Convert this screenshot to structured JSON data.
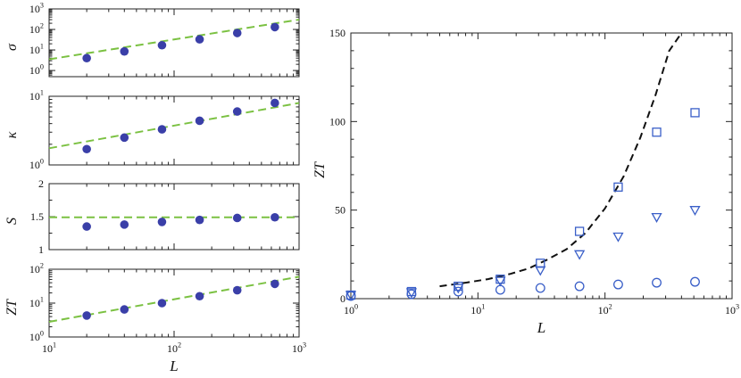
{
  "chart_data": [
    {
      "type": "scatter",
      "panel": "sigma",
      "ylabel": "σ",
      "xscale": "log",
      "yscale": "log",
      "xlim": [
        10,
        1000
      ],
      "ylim": [
        0.5,
        1000
      ],
      "x_ticks": [
        10,
        100,
        1000
      ],
      "y_ticks": [
        1,
        10,
        100,
        1000
      ],
      "y_tick_labels": [
        {
          "base": "10",
          "exp": "0"
        },
        {
          "base": "10",
          "exp": "1"
        },
        {
          "base": "10",
          "exp": "2"
        },
        {
          "base": "10",
          "exp": "3"
        }
      ],
      "series": [
        {
          "marker": "filled-circle",
          "color": "#3a3fa8",
          "x": [
            20,
            40,
            80,
            160,
            320,
            640
          ],
          "y": [
            4,
            8.5,
            17,
            33,
            67,
            130
          ]
        }
      ],
      "fit_line": {
        "style": "dashed",
        "color": "#7bc142",
        "x": [
          10,
          1000
        ],
        "y": [
          3.5,
          300
        ]
      }
    },
    {
      "type": "scatter",
      "panel": "kappa",
      "ylabel": "κ",
      "xscale": "log",
      "yscale": "log",
      "xlim": [
        10,
        1000
      ],
      "ylim": [
        1,
        10
      ],
      "x_ticks": [
        10,
        100,
        1000
      ],
      "y_ticks": [
        1,
        10
      ],
      "y_tick_labels": [
        {
          "base": "10",
          "exp": "0"
        },
        {
          "base": "10",
          "exp": "1"
        }
      ],
      "series": [
        {
          "marker": "filled-circle",
          "color": "#3a3fa8",
          "x": [
            20,
            40,
            80,
            160,
            320,
            640
          ],
          "y": [
            1.7,
            2.5,
            3.3,
            4.4,
            6.0,
            8.0
          ]
        }
      ],
      "fit_line": {
        "style": "dashed",
        "color": "#7bc142",
        "x": [
          10,
          1000
        ],
        "y": [
          1.75,
          8.0
        ]
      }
    },
    {
      "type": "scatter",
      "panel": "S",
      "ylabel": "S",
      "xscale": "log",
      "yscale": "linear",
      "xlim": [
        10,
        1000
      ],
      "ylim": [
        1,
        2
      ],
      "x_ticks": [
        10,
        100,
        1000
      ],
      "y_ticks": [
        1,
        1.5,
        2
      ],
      "y_tick_labels": [
        "1",
        "1.5",
        "2"
      ],
      "series": [
        {
          "marker": "filled-circle",
          "color": "#3a3fa8",
          "x": [
            20,
            40,
            80,
            160,
            320,
            640
          ],
          "y": [
            1.35,
            1.38,
            1.42,
            1.45,
            1.48,
            1.49
          ]
        }
      ],
      "fit_line": {
        "style": "dashed",
        "color": "#7bc142",
        "x": [
          10,
          1000
        ],
        "y": [
          1.49,
          1.49
        ]
      }
    },
    {
      "type": "scatter",
      "panel": "ZT",
      "ylabel": "ZT",
      "xlabel": "L",
      "xscale": "log",
      "yscale": "log",
      "xlim": [
        10,
        1000
      ],
      "ylim": [
        1,
        100
      ],
      "x_ticks": [
        10,
        100,
        1000
      ],
      "x_tick_labels": [
        {
          "base": "10",
          "exp": "1"
        },
        {
          "base": "10",
          "exp": "2"
        },
        {
          "base": "10",
          "exp": "3"
        }
      ],
      "y_ticks": [
        1,
        10,
        100
      ],
      "y_tick_labels": [
        {
          "base": "10",
          "exp": "0"
        },
        {
          "base": "10",
          "exp": "1"
        },
        {
          "base": "10",
          "exp": "2"
        }
      ],
      "series": [
        {
          "marker": "filled-circle",
          "color": "#3a3fa8",
          "x": [
            20,
            40,
            80,
            160,
            320,
            640
          ],
          "y": [
            4.3,
            6.5,
            10,
            16,
            24,
            37
          ]
        }
      ],
      "fit_line": {
        "style": "dashed",
        "color": "#7bc142",
        "x": [
          10,
          1000
        ],
        "y": [
          2.8,
          60
        ]
      }
    },
    {
      "type": "scatter",
      "panel": "ZT-linear",
      "ylabel": "ZT",
      "xlabel": "L",
      "xscale": "log",
      "yscale": "linear",
      "xlim": [
        1,
        1000
      ],
      "ylim": [
        0,
        150
      ],
      "x_ticks": [
        1,
        10,
        100,
        1000
      ],
      "x_tick_labels": [
        {
          "base": "10",
          "exp": "0"
        },
        {
          "base": "10",
          "exp": "1"
        },
        {
          "base": "10",
          "exp": "2"
        },
        {
          "base": "10",
          "exp": "3"
        }
      ],
      "y_ticks": [
        0,
        50,
        100,
        150
      ],
      "y_tick_labels": [
        "0",
        "50",
        "100",
        "150"
      ],
      "series": [
        {
          "marker": "open-square",
          "color": "#3a5fc8",
          "x": [
            1,
            3,
            7,
            15,
            31,
            63,
            127,
            255,
            511
          ],
          "y": [
            2,
            4,
            7,
            11,
            20,
            38,
            63,
            94,
            105
          ]
        },
        {
          "marker": "open-triangle-down",
          "color": "#3a5fc8",
          "x": [
            1,
            3,
            7,
            15,
            31,
            63,
            127,
            255,
            511
          ],
          "y": [
            2,
            3.5,
            6,
            10,
            16,
            25,
            35,
            46,
            50
          ]
        },
        {
          "marker": "open-circle",
          "color": "#3a5fc8",
          "x": [
            1,
            3,
            7,
            15,
            31,
            63,
            127,
            255,
            511
          ],
          "y": [
            1.5,
            2.5,
            4,
            5,
            6,
            7,
            8,
            9,
            9.5
          ]
        }
      ],
      "fit_curve": {
        "style": "dashed",
        "color": "#111111",
        "x": [
          5,
          8,
          12,
          18,
          25,
          35,
          50,
          70,
          100,
          140,
          190,
          250,
          320,
          400
        ],
        "y": [
          7,
          9,
          11,
          14,
          17,
          22,
          28,
          37,
          51,
          69,
          91,
          115,
          140,
          150
        ]
      }
    }
  ]
}
